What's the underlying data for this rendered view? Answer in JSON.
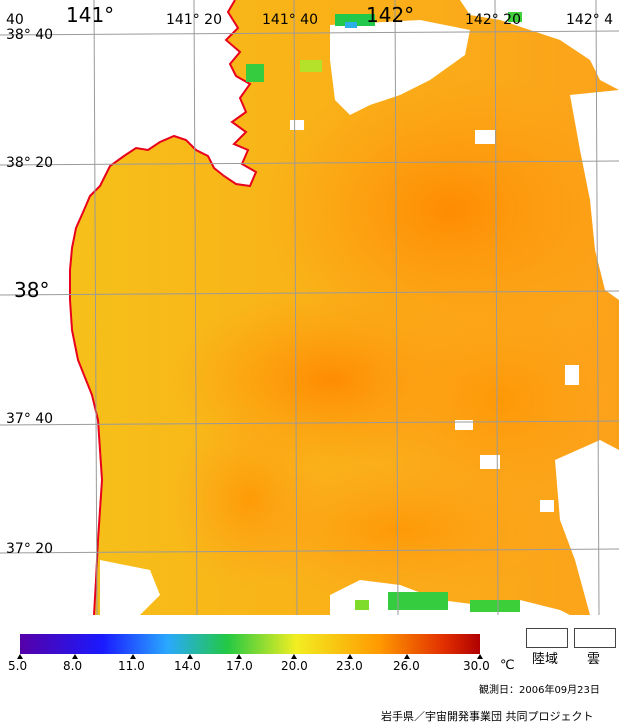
{
  "map": {
    "lon_labels": {
      "lon_141": "141°",
      "lon_141_20": "141° 20",
      "lon_141_40": "141° 40",
      "lon_142": "142°",
      "lon_142_20": "142° 20",
      "lon_142_40": "142° 4"
    },
    "lat_labels": {
      "lat_38_40": "38° 40",
      "lat_38_40_prefix": "40",
      "lat_38_20": "38° 20",
      "lat_38": "38°",
      "lat_37_40": "37° 40",
      "lat_37_20": "37° 20"
    },
    "colors": {
      "coast": "#e8001c",
      "grid": "#9a9a9a",
      "sst_low": "#f3c51c",
      "sst_high": "#ff9000",
      "land": "#ffffff",
      "cloud": "#ffffff"
    }
  },
  "colorbar": {
    "ticks": [
      "5.0",
      "8.0",
      "11.0",
      "14.0",
      "17.0",
      "20.0",
      "23.0",
      "26.0",
      "30.0"
    ],
    "unit": "℃",
    "colors": [
      "#5500a8",
      "#1a1aff",
      "#2aa8ff",
      "#22c844",
      "#f2ee22",
      "#ff9a00",
      "#e23000",
      "#b00000"
    ]
  },
  "legend": {
    "land": "陸域",
    "cloud": "雲"
  },
  "footer": {
    "observation": "観測日：2006年09月23日",
    "credit": "岩手県／宇宙開発事業団 共同プロジェクト"
  }
}
